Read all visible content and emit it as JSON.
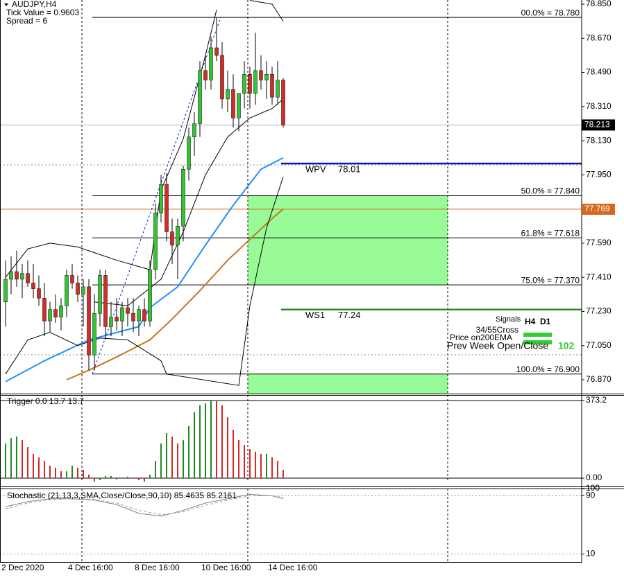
{
  "chart_data": [
    {
      "type": "candlestick",
      "title": "AUDJPY,H4",
      "info": [
        "Tick Value = 0.9603",
        "Spread = 6"
      ],
      "categories": [
        "2 Dec 2020",
        null,
        null,
        null,
        null,
        null,
        null,
        null,
        null,
        null,
        null,
        null,
        "4 Dec 16:00",
        null,
        null,
        null,
        null,
        null,
        null,
        null,
        null,
        null,
        null,
        null,
        "8 Dec 16:00",
        null,
        null,
        null,
        null,
        null,
        null,
        null,
        null,
        null,
        null,
        null,
        "10 Dec 16:00",
        null,
        null,
        null,
        null,
        null,
        null,
        null,
        null,
        null,
        null,
        null,
        "14 Dec 16:00",
        null,
        null
      ],
      "open": [
        77.28,
        77.4,
        77.44,
        77.4,
        77.43,
        77.38,
        77.35,
        77.3,
        77.18,
        77.24,
        77.2,
        77.26,
        77.42,
        77.38,
        77.32,
        77.36,
        77.0,
        77.22,
        77.42,
        77.15,
        77.2,
        77.18,
        77.25,
        77.22,
        77.18,
        77.24,
        77.18,
        77.45,
        77.75,
        77.9,
        77.65,
        77.58,
        77.68,
        77.98,
        78.15,
        78.22,
        78.5,
        78.45,
        78.62,
        78.58,
        78.35,
        78.4,
        78.25,
        78.38,
        78.48,
        78.38,
        78.5,
        78.45,
        78.48,
        78.36,
        78.45
      ],
      "high": [
        77.5,
        77.52,
        77.55,
        77.48,
        77.5,
        77.48,
        77.42,
        77.38,
        77.28,
        77.32,
        77.3,
        77.45,
        77.48,
        77.42,
        77.4,
        77.4,
        77.32,
        77.45,
        77.45,
        77.28,
        77.3,
        77.28,
        77.3,
        77.3,
        77.26,
        77.3,
        77.5,
        77.8,
        77.95,
        77.96,
        77.72,
        77.72,
        78.0,
        78.2,
        78.28,
        78.55,
        78.58,
        78.68,
        78.78,
        78.65,
        78.5,
        78.48,
        78.38,
        78.55,
        78.52,
        78.7,
        78.58,
        78.55,
        78.52,
        78.55,
        78.46
      ],
      "low": [
        77.15,
        77.32,
        77.36,
        77.3,
        77.36,
        77.3,
        77.26,
        77.1,
        77.12,
        77.17,
        77.13,
        77.2,
        77.35,
        77.28,
        77.15,
        76.92,
        76.92,
        77.15,
        77.08,
        77.1,
        77.13,
        77.1,
        77.15,
        77.12,
        77.1,
        77.15,
        77.15,
        77.4,
        77.7,
        77.6,
        77.48,
        77.4,
        77.6,
        77.92,
        78.05,
        78.15,
        78.4,
        78.4,
        78.55,
        78.3,
        78.28,
        78.2,
        78.18,
        78.3,
        78.3,
        78.32,
        78.4,
        78.35,
        78.32,
        78.32,
        78.2
      ],
      "close": [
        77.4,
        77.44,
        77.4,
        77.43,
        77.38,
        77.35,
        77.3,
        77.18,
        77.24,
        77.2,
        77.26,
        77.42,
        77.38,
        77.32,
        77.36,
        77.0,
        77.22,
        77.42,
        77.15,
        77.2,
        77.18,
        77.25,
        77.22,
        77.18,
        77.24,
        77.18,
        77.45,
        77.75,
        77.9,
        77.65,
        77.58,
        77.68,
        77.98,
        78.15,
        78.22,
        78.5,
        78.45,
        78.62,
        78.58,
        78.35,
        78.4,
        78.25,
        78.38,
        78.48,
        78.38,
        78.5,
        78.45,
        78.48,
        78.36,
        78.45,
        78.213
      ],
      "up_color": "#33c433",
      "down_color": "#d42a2a",
      "ylim": [
        76.797,
        78.872
      ],
      "yticks": [
        {
          "value": 78.85,
          "label": "78.850"
        },
        {
          "value": 78.67,
          "label": "78.670"
        },
        {
          "value": 78.49,
          "label": "78.490"
        },
        {
          "value": 78.31,
          "label": "78.310"
        },
        {
          "value": 78.13,
          "label": "78.130"
        },
        {
          "value": 77.95,
          "label": "77.950"
        },
        {
          "value": 77.59,
          "label": "77.590"
        },
        {
          "value": 77.41,
          "label": "77.410"
        },
        {
          "value": 77.23,
          "label": "77.230"
        },
        {
          "value": 77.05,
          "label": "77.050"
        },
        {
          "value": 76.87,
          "label": "76.870"
        }
      ],
      "current_price": 78.213,
      "orange_level": {
        "value": 77.769,
        "color": "#d2691e"
      },
      "series": [
        {
          "color": "#1e90ff",
          "width": 2,
          "x": [
            0,
            7,
            15,
            24,
            26,
            31,
            36,
            41,
            46,
            50
          ],
          "values": [
            76.86,
            76.97,
            77.08,
            77.15,
            77.25,
            77.36,
            77.58,
            77.79,
            77.98,
            78.04
          ]
        },
        {
          "color": "#c8741e",
          "width": 2,
          "x": [
            11,
            15,
            20,
            26,
            30,
            35,
            40,
            44,
            48,
            50
          ],
          "values": [
            76.87,
            76.92,
            76.99,
            77.08,
            77.19,
            77.34,
            77.5,
            77.61,
            77.72,
            77.77
          ]
        },
        {
          "color": "#000000",
          "width": 1,
          "x": [
            0,
            4,
            8,
            13,
            16,
            20,
            26,
            28,
            32,
            36,
            38,
            40,
            44,
            46,
            48,
            50
          ],
          "values": [
            77.41,
            77.56,
            77.59,
            77.57,
            77.54,
            77.5,
            77.45,
            77.87,
            78.14,
            78.58,
            78.82,
            null,
            78.87,
            78.86,
            78.85,
            78.76
          ]
        },
        {
          "color": "#000000",
          "width": 1,
          "x": [
            0,
            4,
            8,
            13,
            17,
            22,
            28,
            29,
            42,
            44,
            47,
            50
          ],
          "values": [
            76.9,
            77.08,
            77.12,
            77.05,
            77.09,
            77.08,
            76.97,
            76.9,
            76.84,
            77.26,
            77.67,
            77.94
          ]
        },
        {
          "color": "#000000",
          "width": 1,
          "x": [
            16,
            22,
            28,
            32,
            36,
            40,
            44,
            48,
            50
          ],
          "values": [
            77.28,
            77.26,
            77.4,
            77.65,
            77.95,
            78.15,
            78.25,
            78.3,
            78.35
          ]
        }
      ],
      "fib_levels": [
        {
          "label": "00.0% = 78.780",
          "value": 78.78
        },
        {
          "label": "50.0% = 77.840",
          "value": 77.84
        },
        {
          "label": "61.8% = 77.618",
          "value": 77.618
        },
        {
          "label": "75.0% = 77.370",
          "value": 77.37
        },
        {
          "label": "100.0% = 76.900",
          "value": 76.9
        }
      ],
      "zone_color": "#98fb98",
      "pivots": [
        {
          "name": "WPV",
          "value": 78.01,
          "color": "#0018c8"
        },
        {
          "name": "WS1",
          "value": 77.24,
          "color": "#2a8a2a"
        }
      ],
      "signals": {
        "title": "Signals",
        "columns": [
          "H4",
          "D1"
        ],
        "rows": [
          "34/55Cross",
          "Price on200EMA",
          "Prev Week Open/Close"
        ],
        "count": 102
      }
    },
    {
      "type": "histogram",
      "title": "Trigger 0.0 13.7 13.7",
      "values": [
        167,
        193,
        200,
        183,
        150,
        117,
        100,
        83,
        60,
        50,
        33,
        33,
        60,
        50,
        40,
        17,
        -17,
        -10,
        10,
        10,
        -7,
        0,
        7,
        3,
        -10,
        -17,
        17,
        83,
        167,
        217,
        200,
        167,
        183,
        250,
        317,
        350,
        360,
        373,
        370,
        350,
        293,
        233,
        183,
        160,
        140,
        127,
        117,
        117,
        100,
        83,
        40
      ],
      "up_color": "#1f8a1f",
      "down_color": "#d42a2a",
      "ylim": [
        -16.7,
        400
      ],
      "yticks": [
        373.2,
        {
          "value": 0,
          "label": "0.00"
        }
      ]
    },
    {
      "type": "line",
      "title": "Stochastic (21,13,3,SMA,Close/Close,90,10) 85.4635 85.2161",
      "series": [
        {
          "color": "#808080",
          "dash": false,
          "x": [
            0,
            4,
            8,
            12,
            16,
            20,
            24,
            28,
            32,
            36,
            40,
            44,
            48,
            50
          ],
          "values": [
            75,
            82,
            86,
            86,
            84,
            78,
            66,
            62,
            70,
            80,
            86,
            92,
            90,
            86
          ]
        },
        {
          "color": "#a0a0a0",
          "dash": true,
          "x": [
            0,
            4,
            8,
            12,
            16,
            20,
            24,
            28,
            32,
            36,
            40,
            44,
            48,
            50
          ],
          "values": [
            72,
            80,
            85,
            86,
            85,
            80,
            70,
            64,
            68,
            77,
            84,
            90,
            90,
            88
          ]
        }
      ],
      "ylim": [
        0,
        100
      ],
      "yticks": [
        100,
        90,
        10
      ]
    }
  ]
}
